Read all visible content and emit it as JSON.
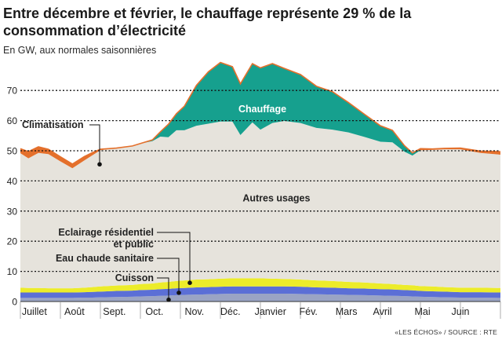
{
  "title": "Entre décembre et février, le chauffage représente 29 % de la consommation d’électricité",
  "subtitle": "En GW, aux normales saisonnières",
  "source": "«LES ÉCHOS» / SOURCE : RTE",
  "colors": {
    "autres": "#e6e3dc",
    "chauffage": "#16a08e",
    "chauffage_edge": "#0e7f70",
    "climatisation": "#e4702c",
    "eclairage": "#ecec2a",
    "eau": "#5b6fd6",
    "cuisson": "#9aa4c4",
    "grid": "#111111",
    "axis": "#333333"
  },
  "chart_data": {
    "type": "area",
    "title": "Entre décembre et février, le chauffage représente 29 % de la consommation d’électricité",
    "ylabel": "En GW, aux normales saisonnières",
    "ylim": [
      0,
      75
    ],
    "yticks": [
      0,
      10,
      20,
      30,
      40,
      50,
      60,
      70
    ],
    "x_range": [
      0,
      12
    ],
    "months": [
      {
        "label": "Juillet",
        "x": 0.35
      },
      {
        "label": "Août",
        "x": 1.35
      },
      {
        "label": "Sept.",
        "x": 2.35
      },
      {
        "label": "Oct.",
        "x": 3.35
      },
      {
        "label": "Nov.",
        "x": 4.35
      },
      {
        "label": "Déc.",
        "x": 5.25
      },
      {
        "label": "Janvier",
        "x": 6.25
      },
      {
        "label": "Fév.",
        "x": 7.2
      },
      {
        "label": "Mars",
        "x": 8.15
      },
      {
        "label": "Avril",
        "x": 9.05
      },
      {
        "label": "Mai",
        "x": 10.05
      },
      {
        "label": "Juin",
        "x": 11.0
      }
    ],
    "x": [
      0,
      0.2,
      0.45,
      0.7,
      1.0,
      1.3,
      1.6,
      1.8,
      2.0,
      2.4,
      2.8,
      3.0,
      3.3,
      3.5,
      3.7,
      3.9,
      4.1,
      4.4,
      4.7,
      5.0,
      5.3,
      5.5,
      5.8,
      6.0,
      6.3,
      6.6,
      7.0,
      7.4,
      7.8,
      8.2,
      8.6,
      9.0,
      9.3,
      9.6,
      9.8,
      10.0,
      10.3,
      10.6,
      11.0,
      11.5,
      12.0
    ],
    "series": [
      {
        "name": "Cuisson",
        "values": [
          1.2,
          1.2,
          1.2,
          1.2,
          1.2,
          1.2,
          1.3,
          1.3,
          1.4,
          1.5,
          1.6,
          1.7,
          1.8,
          1.9,
          2.0,
          2.1,
          2.2,
          2.3,
          2.4,
          2.5,
          2.6,
          2.6,
          2.6,
          2.6,
          2.6,
          2.6,
          2.5,
          2.4,
          2.3,
          2.2,
          2.1,
          2.0,
          1.9,
          1.8,
          1.7,
          1.6,
          1.5,
          1.4,
          1.3,
          1.3,
          1.2
        ]
      },
      {
        "name": "Eau chaude sanitaire",
        "values": [
          1.8,
          1.8,
          1.8,
          1.8,
          1.8,
          1.8,
          1.8,
          1.9,
          1.9,
          2.0,
          2.0,
          2.1,
          2.1,
          2.2,
          2.2,
          2.3,
          2.3,
          2.4,
          2.4,
          2.4,
          2.4,
          2.4,
          2.4,
          2.4,
          2.4,
          2.4,
          2.4,
          2.3,
          2.3,
          2.2,
          2.2,
          2.1,
          2.1,
          2.0,
          2.0,
          1.9,
          1.9,
          1.9,
          1.8,
          1.8,
          1.8
        ]
      },
      {
        "name": "Eclairage résidentiel et public",
        "values": [
          1.6,
          1.5,
          1.5,
          1.4,
          1.4,
          1.4,
          1.5,
          1.6,
          1.7,
          1.8,
          1.9,
          2.0,
          2.1,
          2.2,
          2.3,
          2.4,
          2.5,
          2.6,
          2.6,
          2.7,
          2.7,
          2.7,
          2.7,
          2.7,
          2.6,
          2.5,
          2.4,
          2.3,
          2.2,
          2.1,
          2.0,
          1.9,
          1.8,
          1.7,
          1.7,
          1.6,
          1.6,
          1.5,
          1.5,
          1.5,
          1.5
        ]
      },
      {
        "name": "Autres usages",
        "values": [
          44.6,
          43.0,
          44.8,
          44.5,
          42.1,
          39.8,
          42.2,
          43.7,
          45.2,
          45.6,
          46.1,
          46.6,
          47.2,
          48.4,
          48.0,
          50.0,
          49.8,
          51.0,
          51.6,
          52.1,
          52.0,
          47.5,
          51.7,
          49.3,
          51.6,
          52.4,
          51.9,
          50.6,
          50.2,
          49.6,
          48.3,
          47.0,
          47.0,
          44.2,
          43.0,
          45.1,
          45.3,
          45.7,
          45.9,
          44.7,
          44.2
        ]
      },
      {
        "name": "Chauffage",
        "values": [
          0,
          0,
          0,
          0,
          0,
          0,
          0,
          0,
          0,
          0,
          0,
          0,
          0.4,
          1.6,
          4.3,
          5.5,
          8.0,
          13.4,
          17.2,
          19.6,
          18.2,
          17.0,
          19.5,
          20.5,
          19.7,
          17.4,
          16.1,
          13.8,
          12.6,
          9.9,
          7.5,
          5.3,
          4.0,
          2.0,
          0.9,
          0,
          0,
          0,
          0,
          0,
          0
        ]
      },
      {
        "name": "Climatisation",
        "values": [
          1.5,
          2.2,
          2.0,
          1.6,
          1.5,
          1.4,
          1.3,
          0.9,
          0.3,
          0,
          0,
          0,
          0,
          0,
          0,
          0,
          0,
          0,
          0,
          0,
          0,
          0,
          0,
          0,
          0,
          0,
          0,
          0,
          0,
          0,
          0,
          0,
          0,
          0,
          0,
          0.5,
          0.3,
          0.3,
          0.4,
          0.6,
          1.0
        ]
      }
    ],
    "labels": {
      "chauffage": "Chauffage",
      "autres": "Autres usages",
      "climatisation": "Climatisation",
      "eclairage_line1": "Eclairage résidentiel",
      "eclairage_line2": "et public",
      "eau": "Eau chaude sanitaire",
      "cuisson": "Cuisson"
    }
  }
}
